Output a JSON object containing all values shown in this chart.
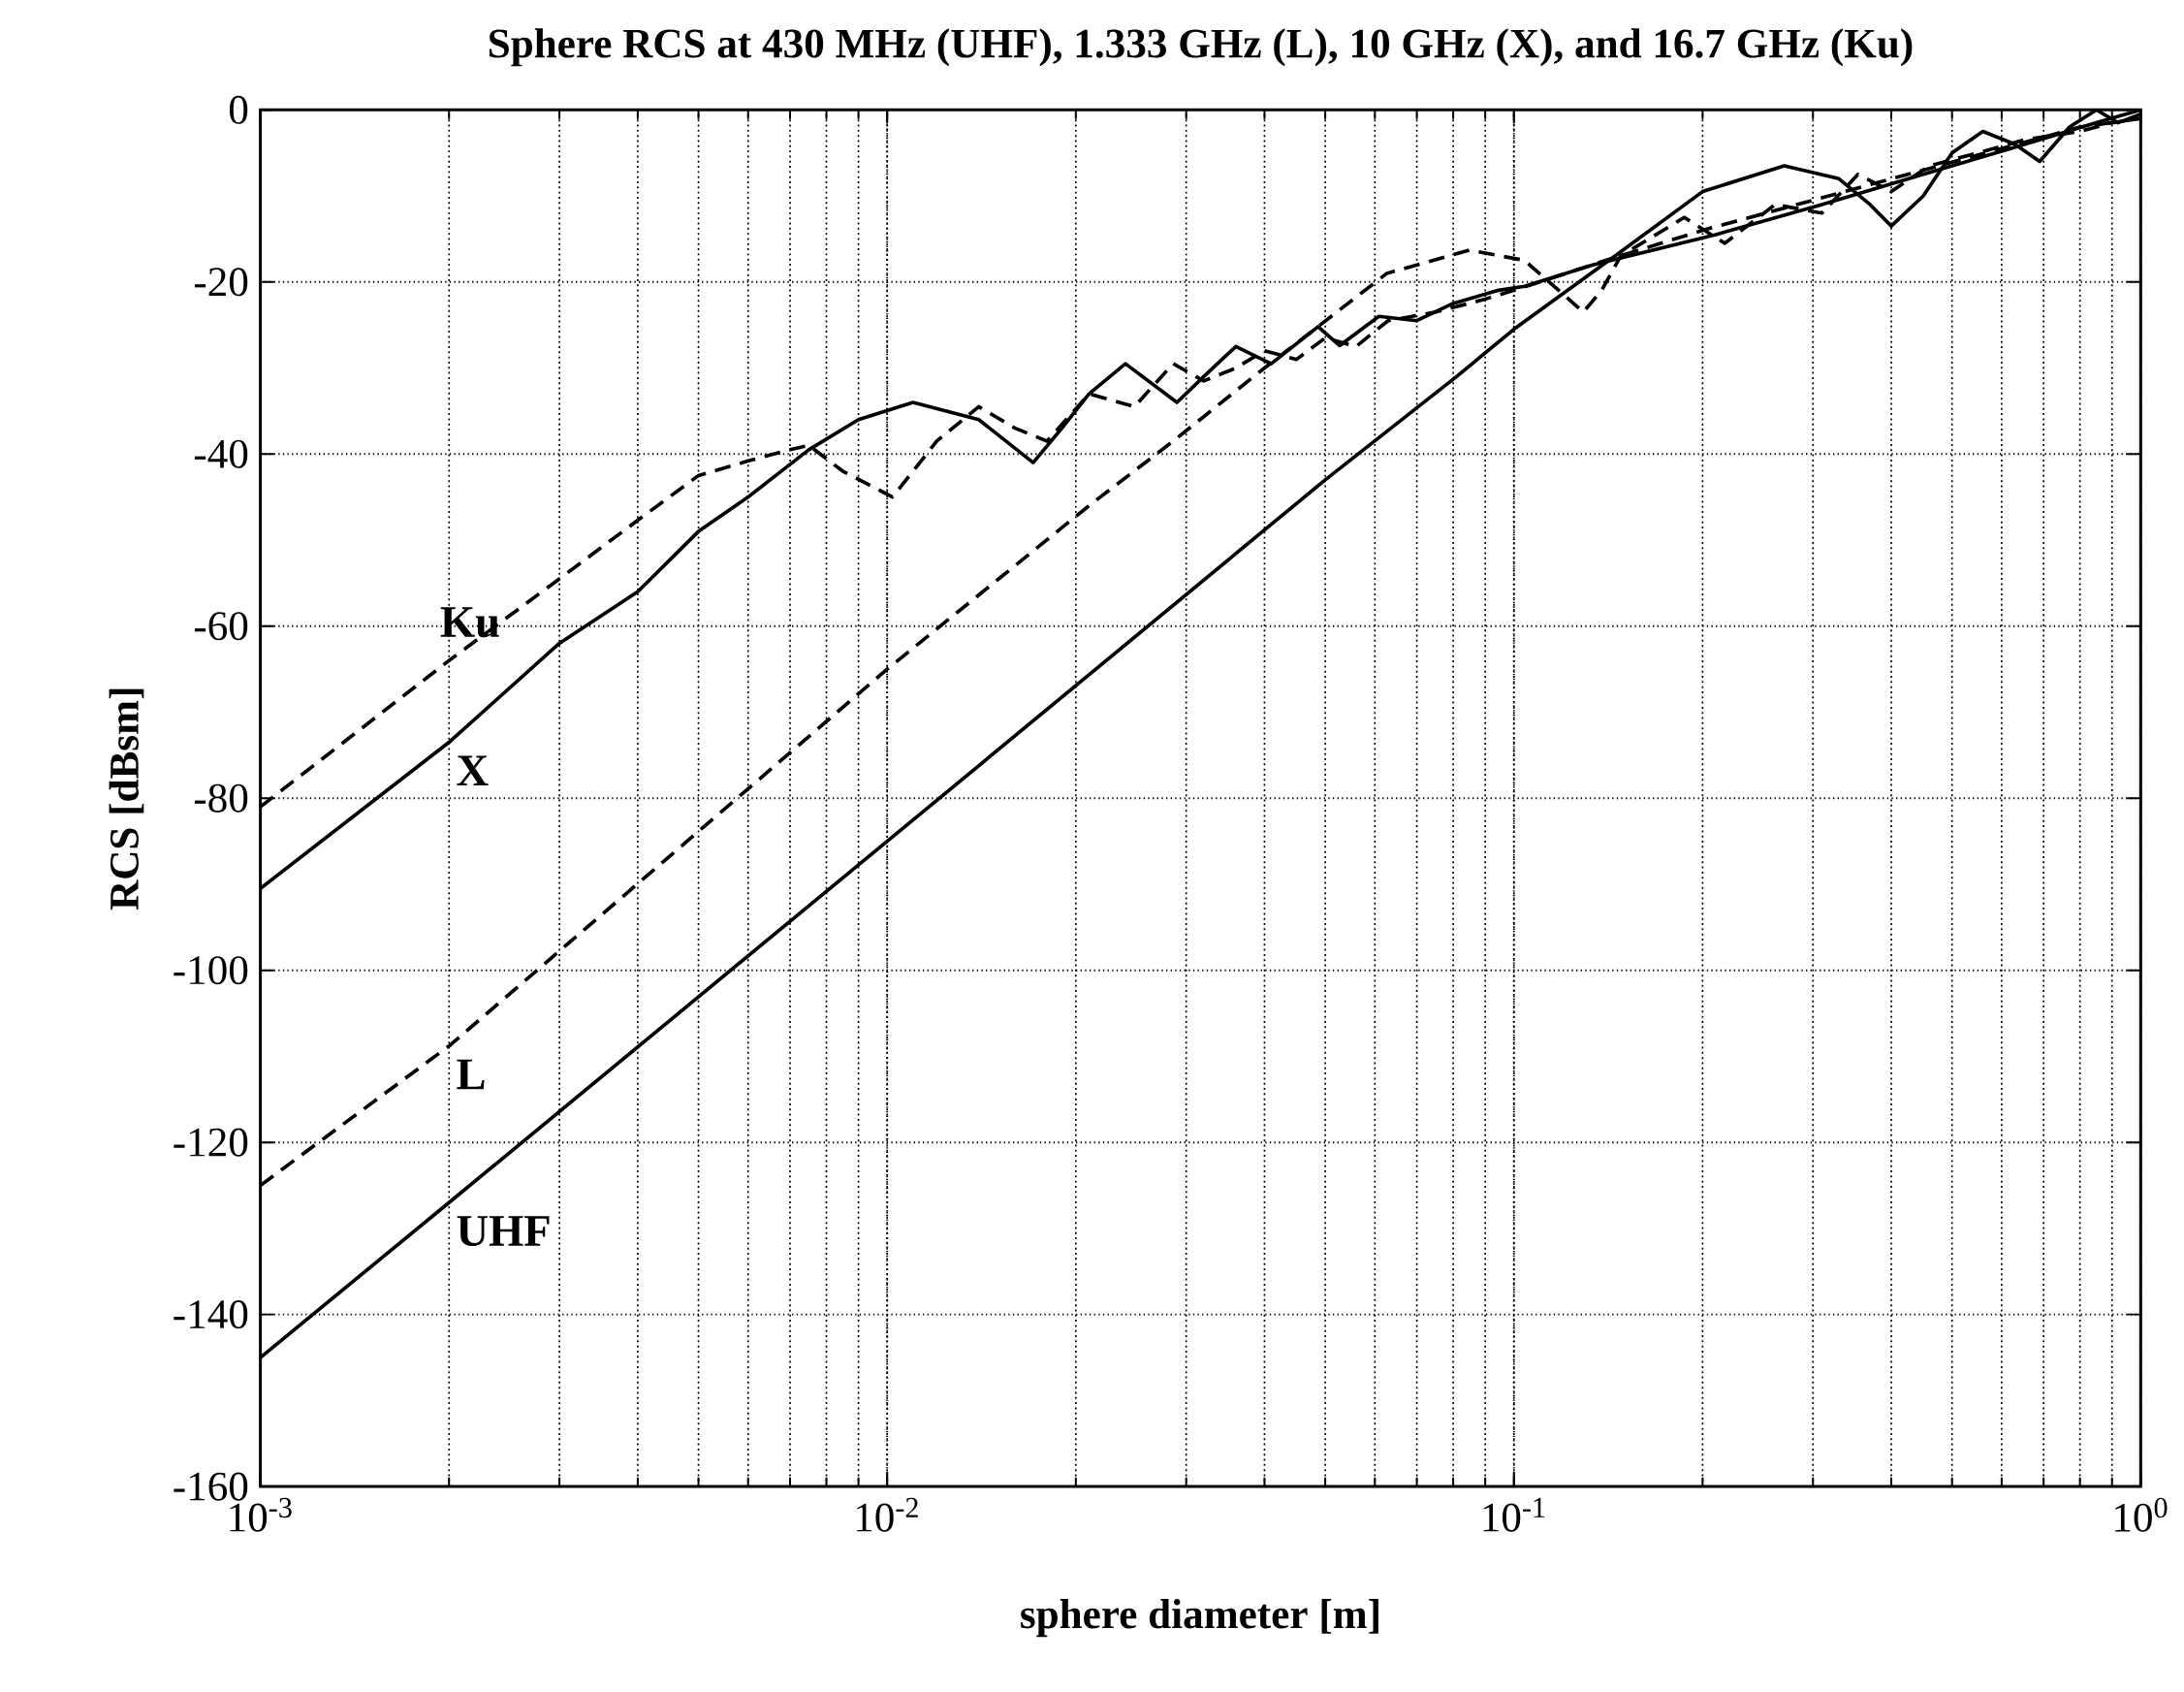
{
  "chart_data": {
    "type": "line",
    "title": "Sphere RCS at 430 MHz (UHF), 1.333 GHz (L), 10 GHz (X), and 16.7 GHz (Ku)",
    "xlabel": "sphere diameter [m]",
    "ylabel": "RCS [dBsm]",
    "log": "x",
    "grid": true,
    "xlim": [
      0.001,
      1
    ],
    "ylim": [
      -160,
      0
    ],
    "xticks": [
      {
        "value": 0.001,
        "label": "10$^{-3}$"
      },
      {
        "value": 0.01,
        "label": "10$^{-2}$"
      },
      {
        "value": 0.1,
        "label": "10$^{-1}$"
      },
      {
        "value": 1,
        "label": "10$^{0}$"
      }
    ],
    "yticks": [
      -160,
      -140,
      -120,
      -100,
      -80,
      -60,
      -40,
      -20,
      0
    ],
    "series": [
      {
        "name": "Ku",
        "color": "#000000",
        "line_style": "dashed",
        "x": [
          0.001,
          0.002,
          0.003,
          0.004,
          0.005,
          0.006,
          0.007,
          0.0075,
          0.0085,
          0.0102,
          0.012,
          0.014,
          0.016,
          0.018,
          0.021,
          0.0248,
          0.0286,
          0.032,
          0.036,
          0.04,
          0.045,
          0.05,
          0.056,
          0.063,
          0.075,
          0.09,
          0.11,
          0.14,
          0.2,
          0.3,
          0.45,
          0.6,
          0.8,
          1.0
        ],
        "values": [
          -81,
          -64,
          -54.5,
          -47.7,
          -42.5,
          -40.8,
          -39.5,
          -39,
          -42,
          -45,
          -38.5,
          -34.5,
          -37,
          -38.5,
          -33,
          -34.5,
          -29.5,
          -31.5,
          -30,
          -28,
          -29,
          -26.5,
          -27.5,
          -24.5,
          -23.5,
          -22,
          -20,
          -17.5,
          -14,
          -10.5,
          -7,
          -4.5,
          -2,
          -1
        ]
      },
      {
        "name": "X",
        "color": "#000000",
        "line_style": "solid",
        "x": [
          0.001,
          0.002,
          0.003,
          0.004,
          0.005,
          0.006,
          0.0075,
          0.009,
          0.011,
          0.014,
          0.0171,
          0.019,
          0.021,
          0.024,
          0.029,
          0.032,
          0.036,
          0.041,
          0.0487,
          0.0527,
          0.0609,
          0.07,
          0.08,
          0.094,
          0.104,
          0.134,
          0.21,
          0.31,
          0.45,
          0.62,
          0.85,
          1.0
        ],
        "values": [
          -90.5,
          -73.5,
          -62,
          -56,
          -49,
          -45,
          -39.5,
          -36,
          -34,
          -36,
          -41,
          -37,
          -33,
          -29.5,
          -34,
          -31,
          -27.5,
          -29.5,
          -25.2,
          -27.4,
          -24,
          -24.5,
          -22.5,
          -21,
          -20.5,
          -18,
          -14.5,
          -11,
          -7.5,
          -4.5,
          -1.5,
          0
        ]
      },
      {
        "name": "L",
        "color": "#000000",
        "line_style": "dashed",
        "x": [
          0.001,
          0.002,
          0.01,
          0.021,
          0.0286,
          0.04,
          0.0627,
          0.085,
          0.104,
          0.118,
          0.129,
          0.138,
          0.148,
          0.187,
          0.217,
          0.261,
          0.31,
          0.354,
          0.4,
          0.46,
          0.55,
          0.65,
          0.8,
          0.9,
          1.0
        ],
        "values": [
          -125,
          -108.8,
          -65,
          -46,
          -38.5,
          -30,
          -19,
          -16.3,
          -17.5,
          -21,
          -23.5,
          -21,
          -17,
          -12.5,
          -15.5,
          -11,
          -12,
          -7.5,
          -9.5,
          -6.5,
          -5,
          -3.5,
          -2.5,
          -1.5,
          -1
        ]
      },
      {
        "name": "UHF",
        "color": "#000000",
        "line_style": "solid",
        "x": [
          0.001,
          0.002,
          0.01,
          0.05,
          0.081,
          0.1,
          0.148,
          0.2,
          0.27,
          0.33,
          0.37,
          0.4,
          0.45,
          0.5,
          0.56,
          0.63,
          0.69,
          0.77,
          0.85,
          0.92,
          1.0
        ],
        "values": [
          -145,
          -127,
          -85,
          -43,
          -31,
          -25.5,
          -16.5,
          -9.5,
          -6.5,
          -8,
          -11,
          -13.5,
          -10,
          -5,
          -2.5,
          -4,
          -6,
          -2,
          0,
          -1.5,
          -0.5
        ]
      }
    ]
  }
}
